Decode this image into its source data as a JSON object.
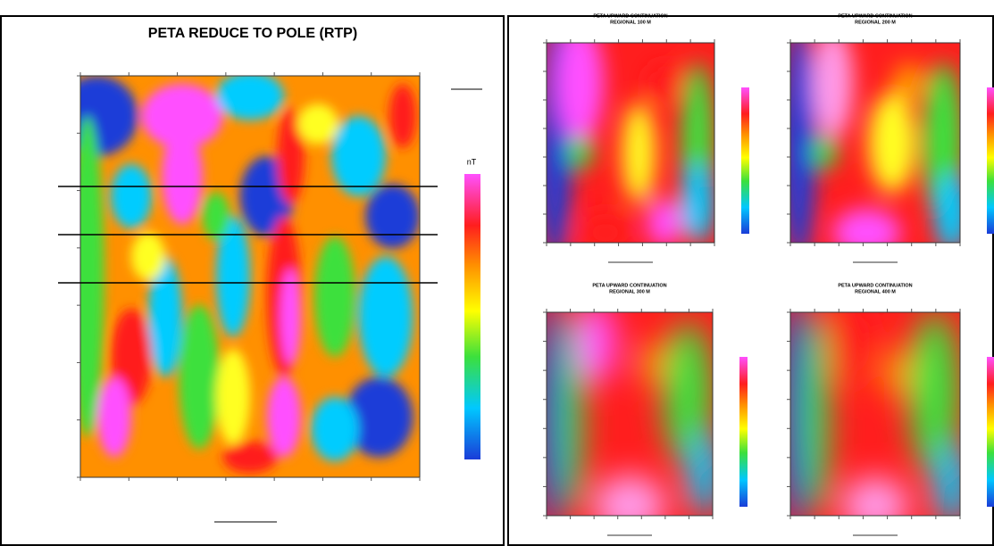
{
  "main_map": {
    "title": "PETA REDUCE TO POLE (RTP)",
    "unit": "nT"
  },
  "maps": [
    {
      "title": "PETA UPWARD CONTINUATION",
      "subtitle": "REGIONAL 100 M"
    },
    {
      "title": "PETA UPWARD CONTINUATION",
      "subtitle": "REGIONAL 200 M"
    },
    {
      "title": "PETA UPWARD CONTINUATION",
      "subtitle": "REGIONAL 300 M"
    },
    {
      "title": "PETA UPWARD CONTINUATION",
      "subtitle": "REGIONAL 400 M"
    }
  ]
}
